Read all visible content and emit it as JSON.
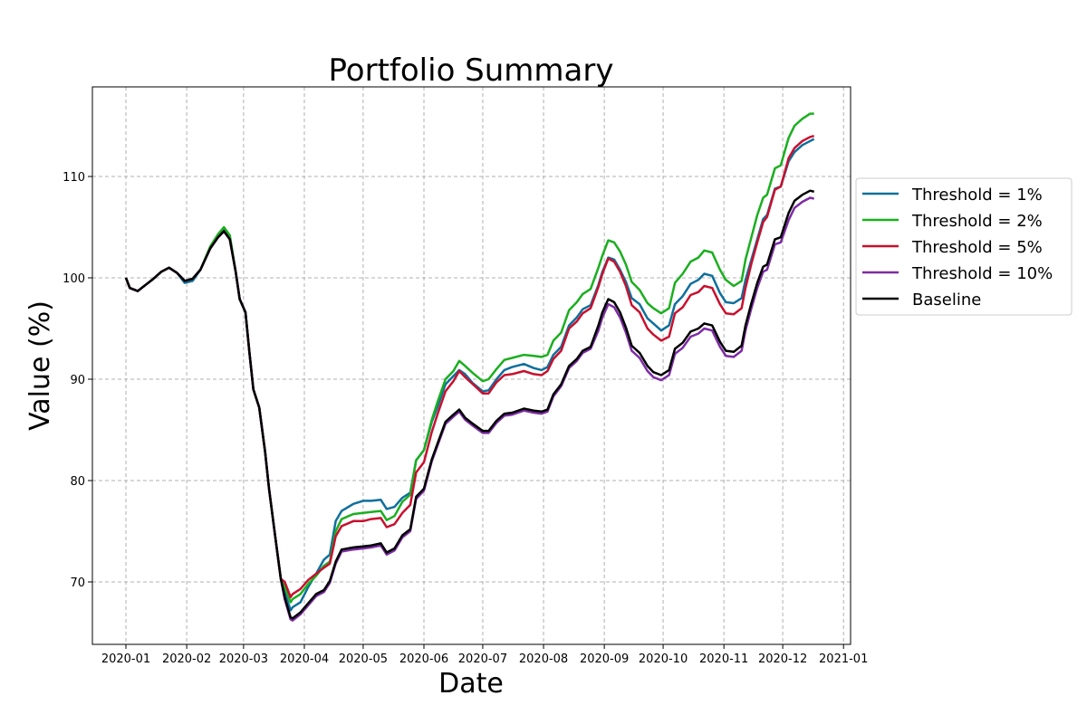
{
  "chart_data": {
    "type": "line",
    "title": "Portfolio Summary",
    "xlabel": "Date",
    "ylabel": "Value (%)",
    "x_origin": "2020-01-01",
    "x_unit": "days since 2020-01-01",
    "xlim_days": [
      -17.1,
      369.6
    ],
    "ylim": [
      63.84,
      118.84
    ],
    "grid": true,
    "legend_position": "right-outside",
    "x_ticks": [
      {
        "label": "2020-01",
        "day": 0
      },
      {
        "label": "2020-02",
        "day": 31
      },
      {
        "label": "2020-03",
        "day": 60
      },
      {
        "label": "2020-04",
        "day": 91
      },
      {
        "label": "2020-05",
        "day": 121
      },
      {
        "label": "2020-06",
        "day": 152
      },
      {
        "label": "2020-07",
        "day": 182
      },
      {
        "label": "2020-08",
        "day": 213
      },
      {
        "label": "2020-09",
        "day": 244
      },
      {
        "label": "2020-10",
        "day": 274
      },
      {
        "label": "2020-11",
        "day": 305
      },
      {
        "label": "2020-12",
        "day": 335
      },
      {
        "label": "2021-01",
        "day": 366
      }
    ],
    "y_ticks": [
      70,
      80,
      90,
      100,
      110
    ],
    "x": [
      0,
      2,
      6,
      10,
      14,
      18,
      22,
      26,
      30,
      34,
      38,
      43,
      47,
      50,
      53,
      56,
      58,
      61,
      63,
      65,
      68,
      71,
      73,
      76,
      79,
      81,
      84,
      85,
      89,
      93,
      97,
      101,
      104,
      107,
      110,
      116,
      121,
      125,
      130,
      133,
      137,
      141,
      145,
      148,
      152,
      156,
      159,
      163,
      167,
      170,
      173,
      177,
      182,
      185,
      189,
      193,
      197,
      203,
      208,
      212,
      215,
      218,
      222,
      226,
      230,
      233,
      237,
      241,
      243,
      246,
      249,
      252,
      255,
      258,
      262,
      266,
      269,
      273,
      277,
      280,
      284,
      288,
      292,
      295,
      299,
      303,
      306,
      310,
      314,
      316,
      319,
      322,
      325,
      327,
      331,
      334,
      338,
      341,
      345,
      349,
      351
    ],
    "series": [
      {
        "name": "Threshold = 1%",
        "color": "#0f6f9c",
        "values": [
          100.0,
          99.0,
          98.7,
          99.3,
          99.9,
          100.6,
          101.0,
          100.5,
          99.5,
          99.7,
          100.8,
          103.0,
          104.2,
          104.9,
          104.0,
          100.6,
          97.9,
          96.6,
          92.6,
          89.0,
          87.2,
          82.8,
          79.2,
          74.7,
          70.3,
          69.0,
          67.2,
          67.5,
          68.0,
          69.5,
          70.8,
          72.2,
          72.7,
          76.0,
          77.0,
          77.7,
          78.0,
          78.0,
          78.1,
          77.2,
          77.4,
          78.3,
          78.8,
          82.0,
          83.0,
          85.8,
          87.3,
          89.5,
          90.3,
          90.9,
          90.5,
          89.6,
          88.8,
          88.9,
          90.0,
          90.9,
          91.2,
          91.5,
          91.1,
          90.9,
          91.2,
          92.4,
          93.2,
          95.3,
          96.1,
          96.9,
          97.3,
          99.3,
          100.6,
          102.0,
          101.8,
          100.8,
          99.6,
          98.0,
          97.4,
          96.0,
          95.5,
          94.8,
          95.3,
          97.4,
          98.2,
          99.4,
          99.8,
          100.4,
          100.2,
          98.5,
          97.6,
          97.5,
          98.0,
          99.8,
          101.8,
          103.8,
          105.8,
          106.2,
          108.8,
          109.0,
          111.5,
          112.4,
          113.1,
          113.5,
          113.7
        ]
      },
      {
        "name": "Threshold = 2%",
        "color": "#1aaf1f",
        "values": [
          100.0,
          99.0,
          98.7,
          99.3,
          99.9,
          100.6,
          101.0,
          100.5,
          99.7,
          99.9,
          100.8,
          103.1,
          104.3,
          105.0,
          104.2,
          100.6,
          97.9,
          96.6,
          92.6,
          89.0,
          87.2,
          82.8,
          79.2,
          74.7,
          70.3,
          69.5,
          68.0,
          68.3,
          68.8,
          69.8,
          70.6,
          71.6,
          72.0,
          75.0,
          76.2,
          76.7,
          76.8,
          76.9,
          77.0,
          76.1,
          76.5,
          77.9,
          78.6,
          82.0,
          83.0,
          86.0,
          87.8,
          90.0,
          90.8,
          91.8,
          91.3,
          90.6,
          89.8,
          90.0,
          91.0,
          91.9,
          92.1,
          92.4,
          92.3,
          92.2,
          92.4,
          93.8,
          94.6,
          96.8,
          97.6,
          98.4,
          98.9,
          101.0,
          102.2,
          103.7,
          103.5,
          102.6,
          101.3,
          99.6,
          98.8,
          97.5,
          97.0,
          96.5,
          97.0,
          99.5,
          100.4,
          101.6,
          102.0,
          102.7,
          102.5,
          100.8,
          99.8,
          99.2,
          99.7,
          101.8,
          104.0,
          106.2,
          107.9,
          108.2,
          110.8,
          111.1,
          113.8,
          115.0,
          115.7,
          116.2,
          116.2
        ]
      },
      {
        "name": "Threshold = 5%",
        "color": "#c8102e",
        "values": [
          100.0,
          99.0,
          98.7,
          99.3,
          99.9,
          100.6,
          101.0,
          100.5,
          99.7,
          99.9,
          100.8,
          102.9,
          104.0,
          104.6,
          103.8,
          100.6,
          97.9,
          96.6,
          92.6,
          89.0,
          87.2,
          82.8,
          79.2,
          74.7,
          70.3,
          70.0,
          68.5,
          68.8,
          69.3,
          70.2,
          70.8,
          71.4,
          71.8,
          74.5,
          75.5,
          76.0,
          76.0,
          76.2,
          76.3,
          75.4,
          75.7,
          76.8,
          77.6,
          80.8,
          81.8,
          84.8,
          86.6,
          88.8,
          89.8,
          90.8,
          90.2,
          89.5,
          88.6,
          88.6,
          89.7,
          90.4,
          90.5,
          90.8,
          90.5,
          90.4,
          90.8,
          92.0,
          92.8,
          95.0,
          95.7,
          96.5,
          97.0,
          99.1,
          100.4,
          101.9,
          101.6,
          100.6,
          99.2,
          97.3,
          96.6,
          95.0,
          94.4,
          93.8,
          94.2,
          96.5,
          97.1,
          98.3,
          98.6,
          99.2,
          99.0,
          97.4,
          96.5,
          96.4,
          97.0,
          99.0,
          101.4,
          103.5,
          105.5,
          106.0,
          108.7,
          109.0,
          111.8,
          112.8,
          113.5,
          113.9,
          114.0
        ]
      },
      {
        "name": "Threshold = 10%",
        "color": "#7d2ca5",
        "values": [
          100.0,
          99.0,
          98.7,
          99.3,
          99.9,
          100.6,
          101.0,
          100.5,
          99.7,
          99.9,
          100.8,
          102.9,
          104.0,
          104.6,
          103.8,
          100.6,
          97.9,
          96.6,
          92.6,
          89.0,
          87.2,
          82.8,
          79.2,
          74.7,
          70.3,
          68.3,
          66.3,
          66.2,
          66.8,
          67.7,
          68.6,
          69.0,
          69.9,
          71.8,
          73.0,
          73.2,
          73.3,
          73.4,
          73.6,
          72.7,
          73.1,
          74.4,
          75.0,
          78.2,
          79.0,
          81.9,
          83.5,
          85.6,
          86.3,
          86.8,
          86.0,
          85.4,
          84.7,
          84.7,
          85.7,
          86.4,
          86.5,
          86.9,
          86.7,
          86.6,
          86.8,
          88.3,
          89.3,
          91.1,
          91.8,
          92.6,
          93.0,
          94.8,
          96.1,
          97.4,
          97.1,
          96.1,
          94.6,
          92.8,
          92.1,
          90.8,
          90.2,
          89.9,
          90.4,
          92.5,
          93.1,
          94.2,
          94.5,
          95.0,
          94.8,
          93.2,
          92.3,
          92.2,
          92.8,
          94.8,
          97.0,
          99.0,
          100.6,
          100.8,
          103.3,
          103.5,
          105.7,
          106.9,
          107.5,
          107.9,
          107.8
        ]
      },
      {
        "name": "Baseline",
        "color": "#000000",
        "values": [
          100.0,
          99.0,
          98.7,
          99.3,
          99.9,
          100.6,
          101.0,
          100.5,
          99.7,
          99.9,
          100.8,
          102.9,
          104.0,
          104.6,
          103.8,
          100.6,
          97.9,
          96.6,
          92.6,
          89.0,
          87.2,
          82.8,
          79.2,
          74.7,
          70.3,
          68.5,
          66.5,
          66.4,
          67.0,
          67.9,
          68.8,
          69.2,
          70.1,
          72.0,
          73.2,
          73.4,
          73.5,
          73.6,
          73.8,
          72.9,
          73.3,
          74.6,
          75.2,
          78.4,
          79.2,
          82.1,
          83.7,
          85.8,
          86.5,
          87.0,
          86.2,
          85.6,
          84.9,
          84.9,
          85.9,
          86.6,
          86.7,
          87.1,
          86.9,
          86.8,
          87.0,
          88.5,
          89.5,
          91.3,
          92.0,
          92.8,
          93.2,
          95.3,
          96.6,
          97.9,
          97.6,
          96.6,
          95.1,
          93.3,
          92.6,
          91.3,
          90.7,
          90.4,
          90.9,
          93.0,
          93.6,
          94.7,
          95.0,
          95.5,
          95.3,
          93.7,
          92.8,
          92.7,
          93.3,
          95.3,
          97.5,
          99.5,
          101.1,
          101.3,
          103.8,
          104.0,
          106.4,
          107.6,
          108.2,
          108.6,
          108.5
        ]
      }
    ]
  }
}
